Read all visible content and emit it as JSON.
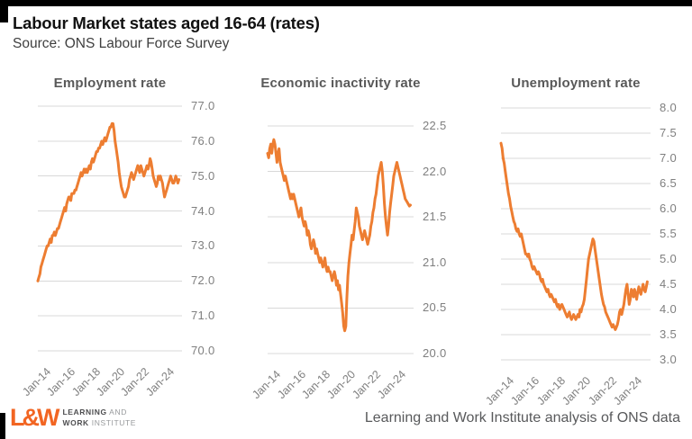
{
  "header": {
    "title": "Labour Market states aged 16-64 (rates)",
    "subtitle": "Source: ONS Labour Force Survey"
  },
  "colors": {
    "line": "#ED7D31",
    "grid": "#D8D8D8",
    "axis_text": "#7F7F7F",
    "chart_title": "#595959",
    "logo_orange": "#F26522"
  },
  "chart_data": [
    {
      "type": "line",
      "title": "Employment rate",
      "ylim": [
        70.0,
        77.0
      ],
      "ytick_labels": [
        "77.0",
        "76.0",
        "75.0",
        "74.0",
        "73.0",
        "72.0",
        "71.0",
        "70.0"
      ],
      "x_labels": [
        "Jan-14",
        "Jan-16",
        "Jan-18",
        "Jan-20",
        "Jan-22",
        "Jan-24"
      ],
      "x_start": "Jan-14",
      "grid": "horizontal",
      "legend": "none",
      "values": [
        72.0,
        72.1,
        72.2,
        72.4,
        72.5,
        72.6,
        72.7,
        72.8,
        72.9,
        73.0,
        73.0,
        73.1,
        73.2,
        73.1,
        73.3,
        73.3,
        73.4,
        73.3,
        73.4,
        73.5,
        73.5,
        73.6,
        73.7,
        73.8,
        73.9,
        74.0,
        74.1,
        74.0,
        74.2,
        74.3,
        74.4,
        74.4,
        74.3,
        74.5,
        74.5,
        74.5,
        74.6,
        74.6,
        74.7,
        74.8,
        74.9,
        75.0,
        75.1,
        75.0,
        75.1,
        75.2,
        75.1,
        75.2,
        75.1,
        75.2,
        75.3,
        75.2,
        75.4,
        75.5,
        75.4,
        75.5,
        75.6,
        75.7,
        75.7,
        75.8,
        75.8,
        75.9,
        76.0,
        75.9,
        76.0,
        76.1,
        76.0,
        76.1,
        76.2,
        76.3,
        76.4,
        76.4,
        76.5,
        76.5,
        76.3,
        76.0,
        75.8,
        75.6,
        75.4,
        75.1,
        74.9,
        74.7,
        74.6,
        74.5,
        74.4,
        74.4,
        74.5,
        74.6,
        74.7,
        74.9,
        75.0,
        75.1,
        75.0,
        74.9,
        75.0,
        75.1,
        75.2,
        75.3,
        75.2,
        75.1,
        75.3,
        75.2,
        75.1,
        75.0,
        75.1,
        75.2,
        75.3,
        75.2,
        75.3,
        75.5,
        75.4,
        75.2,
        75.0,
        74.9,
        74.8,
        74.7,
        74.8,
        75.0,
        74.9,
        75.0,
        74.9,
        74.8,
        74.6,
        74.4,
        74.5,
        74.6,
        74.7,
        74.8,
        74.9,
        75.0,
        74.9,
        74.8,
        74.8,
        74.9,
        75.0,
        74.9,
        74.8,
        74.9
      ]
    },
    {
      "type": "line",
      "title": "Economic inactivity rate",
      "ylim": [
        20.0,
        22.5
      ],
      "ytick_labels": [
        "22.5",
        "22.0",
        "21.5",
        "21.0",
        "20.5",
        "20.0"
      ],
      "x_labels": [
        "Jan-14",
        "Jan-16",
        "Jan-18",
        "Jan-20",
        "Jan-22",
        "Jan-24"
      ],
      "x_start": "Jan-14",
      "grid": "horizontal",
      "legend": "none",
      "values": [
        22.2,
        22.15,
        22.25,
        22.3,
        22.2,
        22.3,
        22.35,
        22.3,
        22.2,
        22.1,
        22.2,
        22.25,
        22.1,
        22.05,
        22.0,
        21.95,
        21.9,
        21.95,
        21.9,
        21.85,
        21.8,
        21.75,
        21.7,
        21.75,
        21.7,
        21.75,
        21.7,
        21.65,
        21.6,
        21.55,
        21.5,
        21.55,
        21.6,
        21.5,
        21.45,
        21.4,
        21.45,
        21.4,
        21.3,
        21.35,
        21.3,
        21.2,
        21.15,
        21.2,
        21.25,
        21.2,
        21.1,
        21.15,
        21.1,
        21.05,
        21.0,
        21.05,
        21.0,
        20.95,
        21.0,
        21.05,
        20.95,
        20.9,
        20.95,
        20.9,
        20.9,
        20.85,
        20.8,
        20.85,
        20.9,
        20.85,
        20.75,
        20.8,
        20.7,
        20.75,
        20.65,
        20.55,
        20.45,
        20.3,
        20.25,
        20.3,
        20.6,
        20.85,
        21.0,
        21.1,
        21.2,
        21.3,
        21.25,
        21.35,
        21.45,
        21.6,
        21.55,
        21.5,
        21.4,
        21.35,
        21.3,
        21.25,
        21.3,
        21.35,
        21.3,
        21.25,
        21.2,
        21.25,
        21.3,
        21.4,
        21.45,
        21.55,
        21.6,
        21.7,
        21.75,
        21.85,
        21.95,
        22.0,
        22.05,
        22.1,
        22.0,
        21.85,
        21.65,
        21.5,
        21.4,
        21.3,
        21.4,
        21.55,
        21.65,
        21.75,
        21.85,
        21.95,
        22.0,
        22.05,
        22.1,
        22.05,
        22.0,
        21.95,
        21.9,
        21.85,
        21.8,
        21.75,
        21.7,
        21.68,
        21.66,
        21.64,
        21.62,
        21.63
      ]
    },
    {
      "type": "line",
      "title": "Unemployment rate",
      "ylim": [
        3.0,
        8.0
      ],
      "ytick_labels": [
        "8.0",
        "7.5",
        "7.0",
        "6.5",
        "6.0",
        "5.5",
        "5.0",
        "4.5",
        "4.0",
        "3.5",
        "3.0"
      ],
      "x_labels": [
        "Jan-14",
        "Jan-16",
        "Jan-18",
        "Jan-20",
        "Jan-22",
        "Jan-24"
      ],
      "x_start": "Jan-14",
      "grid": "horizontal",
      "legend": "none",
      "values": [
        7.3,
        7.2,
        7.0,
        6.9,
        6.75,
        6.6,
        6.45,
        6.3,
        6.2,
        6.05,
        5.95,
        5.85,
        5.75,
        5.7,
        5.6,
        5.55,
        5.6,
        5.5,
        5.45,
        5.5,
        5.4,
        5.3,
        5.2,
        5.1,
        5.1,
        5.05,
        5.1,
        5.0,
        4.95,
        4.85,
        4.8,
        4.85,
        4.8,
        4.75,
        4.7,
        4.75,
        4.7,
        4.6,
        4.55,
        4.6,
        4.5,
        4.45,
        4.4,
        4.35,
        4.4,
        4.3,
        4.25,
        4.3,
        4.25,
        4.2,
        4.15,
        4.2,
        4.1,
        4.05,
        4.1,
        4.0,
        4.05,
        4.1,
        4.05,
        4.0,
        3.95,
        3.9,
        3.85,
        3.9,
        3.95,
        3.85,
        3.8,
        3.85,
        3.9,
        3.85,
        3.8,
        3.85,
        3.9,
        3.85,
        4.0,
        3.95,
        4.05,
        4.1,
        4.2,
        4.4,
        4.6,
        4.8,
        5.0,
        5.1,
        5.2,
        5.3,
        5.4,
        5.35,
        5.2,
        5.05,
        4.9,
        4.75,
        4.6,
        4.45,
        4.3,
        4.2,
        4.1,
        4.05,
        3.95,
        3.9,
        3.85,
        3.8,
        3.75,
        3.7,
        3.65,
        3.7,
        3.65,
        3.6,
        3.65,
        3.7,
        3.8,
        3.95,
        4.0,
        3.9,
        4.0,
        4.1,
        4.25,
        4.4,
        4.5,
        4.3,
        4.1,
        4.2,
        4.4,
        4.35,
        4.25,
        4.4,
        4.3,
        4.2,
        4.35,
        4.45,
        4.35,
        4.3,
        4.4,
        4.5,
        4.4,
        4.35,
        4.45,
        4.55
      ]
    }
  ],
  "footer": {
    "logo": {
      "mark": "L&W",
      "line1_bold": "LEARNING",
      "line1_light": " AND",
      "line2_bold": "WORK",
      "line2_light": " INSTITUTE"
    },
    "attribution": "Learning and Work Institute analysis of ONS data"
  }
}
